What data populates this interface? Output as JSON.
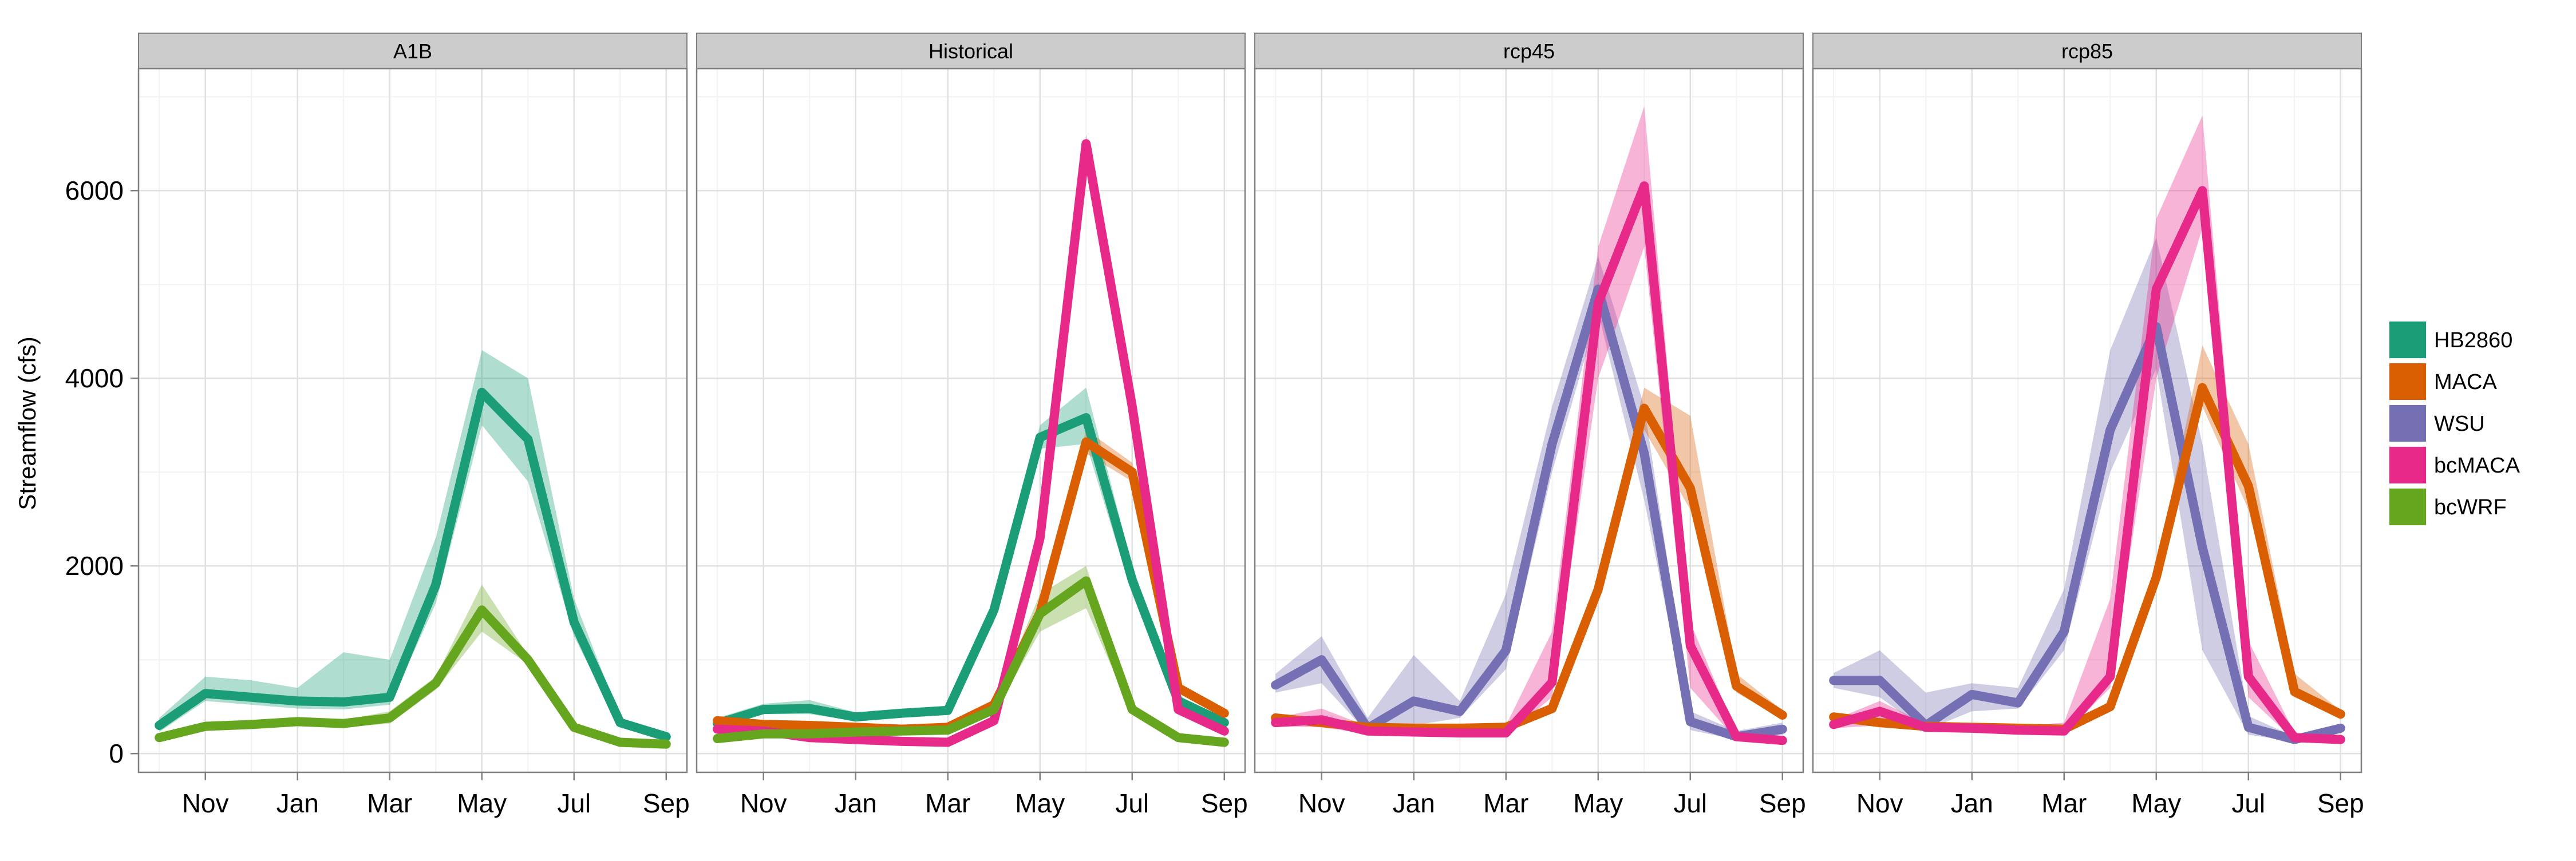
{
  "chart_data": {
    "type": "line",
    "ylabel": "Streamflow (cfs)",
    "xlabel": "",
    "ylim": [
      -200,
      7300
    ],
    "y_ticks": [
      0,
      2000,
      4000,
      6000
    ],
    "x_ticks": [
      {
        "label": "Nov",
        "x": 2
      },
      {
        "label": "Jan",
        "x": 4
      },
      {
        "label": "Mar",
        "x": 6
      },
      {
        "label": "May",
        "x": 8
      },
      {
        "label": "Jul",
        "x": 10
      },
      {
        "label": "Sep",
        "x": 12
      }
    ],
    "x_range": [
      0.55,
      12.45
    ],
    "x_months": [
      1,
      2,
      3,
      4,
      5,
      6,
      7,
      8,
      9,
      10,
      11,
      12
    ],
    "grid": true,
    "legend_position": "right",
    "colors": {
      "HB2860": "#1b9e77",
      "MACA": "#d95f02",
      "WSU": "#7570b3",
      "bcMACA": "#e7298a",
      "bcWRF": "#66a61e"
    },
    "legend": [
      {
        "name": "HB2860",
        "color": "#1b9e77"
      },
      {
        "name": "MACA",
        "color": "#d95f02"
      },
      {
        "name": "WSU",
        "color": "#7570b3"
      },
      {
        "name": "bcMACA",
        "color": "#e7298a"
      },
      {
        "name": "bcWRF",
        "color": "#66a61e"
      }
    ],
    "panels": [
      {
        "title": "A1B",
        "series": [
          {
            "name": "HB2860",
            "values": [
              300,
              640,
              600,
              560,
              550,
              600,
              1800,
              3850,
              3350,
              1400,
              330,
              180
            ],
            "lower": [
              230,
              560,
              520,
              480,
              470,
              520,
              1600,
              3500,
              2900,
              1250,
              280,
              150
            ],
            "upper": [
              380,
              820,
              780,
              700,
              1080,
              1000,
              2300,
              4300,
              4000,
              1650,
              380,
              210
            ]
          },
          {
            "name": "bcWRF",
            "values": [
              170,
              290,
              310,
              340,
              320,
              380,
              750,
              1530,
              1000,
              280,
              120,
              100
            ],
            "lower": [
              140,
              250,
              270,
              300,
              280,
              320,
              680,
              1300,
              950,
              250,
              100,
              80
            ],
            "upper": [
              200,
              330,
              350,
              380,
              360,
              450,
              820,
              1800,
              1050,
              310,
              140,
              120
            ]
          }
        ]
      },
      {
        "title": "Historical",
        "series": [
          {
            "name": "HB2860",
            "values": [
              320,
              470,
              480,
              390,
              430,
              460,
              1530,
              3370,
              3580,
              1850,
              560,
              330
            ],
            "lower": [
              270,
              420,
              420,
              350,
              390,
              420,
              1400,
              3250,
              3300,
              1700,
              500,
              290
            ],
            "upper": [
              380,
              530,
              570,
              440,
              470,
              500,
              1650,
              3500,
              3900,
              2000,
              620,
              380
            ]
          },
          {
            "name": "MACA",
            "values": [
              350,
              310,
              300,
              280,
              260,
              280,
              520,
              1500,
              3320,
              3000,
              700,
              430
            ],
            "lower": [
              310,
              280,
              270,
              250,
              230,
              250,
              470,
              1400,
              3200,
              2900,
              650,
              390
            ],
            "upper": [
              390,
              340,
              330,
              310,
              290,
              310,
              570,
              1600,
              3450,
              3100,
              760,
              470
            ]
          },
          {
            "name": "bcMACA",
            "values": [
              260,
              240,
              170,
              150,
              130,
              120,
              350,
              2300,
              6500,
              3700,
              470,
              240
            ],
            "lower": [
              220,
              210,
              140,
              120,
              100,
              100,
              300,
              2150,
              6400,
              3550,
              420,
              210
            ],
            "upper": [
              300,
              270,
              200,
              180,
              160,
              150,
              400,
              2450,
              6600,
              3850,
              520,
              270
            ]
          },
          {
            "name": "bcWRF",
            "values": [
              160,
              210,
              210,
              230,
              240,
              250,
              470,
              1490,
              1840,
              470,
              170,
              120
            ],
            "lower": [
              130,
              180,
              180,
              200,
              210,
              220,
              420,
              1300,
              1550,
              420,
              140,
              100
            ],
            "upper": [
              190,
              240,
              240,
              260,
              270,
              280,
              530,
              1700,
              2000,
              520,
              200,
              150
            ]
          }
        ]
      },
      {
        "title": "rcp45",
        "series": [
          {
            "name": "WSU",
            "values": [
              730,
              1000,
              270,
              560,
              450,
              1100,
              3300,
              4950,
              3200,
              340,
              180,
              260
            ],
            "lower": [
              650,
              750,
              220,
              300,
              380,
              900,
              3000,
              4700,
              2700,
              250,
              150,
              200
            ],
            "upper": [
              850,
              1250,
              380,
              1050,
              560,
              1700,
              3700,
              5300,
              3700,
              450,
              240,
              330
            ]
          },
          {
            "name": "MACA",
            "values": [
              380,
              330,
              280,
              270,
              270,
              280,
              480,
              1750,
              3680,
              2830,
              720,
              410
            ],
            "lower": [
              340,
              290,
              240,
              240,
              240,
              250,
              430,
              1650,
              3450,
              2600,
              650,
              370
            ],
            "upper": [
              420,
              380,
              320,
              300,
              300,
              310,
              540,
              1850,
              3900,
              3600,
              850,
              460
            ]
          },
          {
            "name": "bcMACA",
            "values": [
              330,
              360,
              240,
              230,
              220,
              220,
              760,
              4800,
              6050,
              1150,
              180,
              140
            ],
            "lower": [
              290,
              280,
              210,
              200,
              190,
              190,
              600,
              4000,
              5400,
              700,
              150,
              120
            ],
            "upper": [
              380,
              480,
              290,
              270,
              260,
              300,
              1300,
              5400,
              6900,
              1400,
              220,
              170
            ]
          }
        ]
      },
      {
        "title": "rcp85",
        "series": [
          {
            "name": "WSU",
            "values": [
              780,
              780,
              300,
              630,
              540,
              1300,
              3450,
              4550,
              2200,
              280,
              150,
              270
            ],
            "lower": [
              700,
              600,
              250,
              450,
              480,
              1100,
              3000,
              4100,
              1100,
              200,
              130,
              220
            ],
            "upper": [
              860,
              1100,
              650,
              750,
              700,
              1750,
              4300,
              5500,
              3300,
              400,
              180,
              320
            ]
          },
          {
            "name": "MACA",
            "values": [
              390,
              330,
              290,
              280,
              270,
              260,
              500,
              1880,
              3900,
              2850,
              660,
              420
            ],
            "lower": [
              350,
              290,
              250,
              250,
              240,
              230,
              450,
              1780,
              3700,
              2600,
              600,
              380
            ],
            "upper": [
              430,
              370,
              330,
              310,
              300,
              290,
              560,
              1980,
              4350,
              3300,
              850,
              460
            ]
          },
          {
            "name": "bcMACA",
            "values": [
              310,
              450,
              280,
              270,
              250,
              240,
              820,
              4950,
              6000,
              820,
              170,
              150
            ],
            "lower": [
              270,
              300,
              250,
              240,
              220,
              210,
              700,
              4000,
              5600,
              600,
              140,
              120
            ],
            "upper": [
              360,
              560,
              320,
              300,
              290,
              330,
              1650,
              5700,
              6800,
              1200,
              220,
              190
            ]
          }
        ]
      }
    ]
  }
}
